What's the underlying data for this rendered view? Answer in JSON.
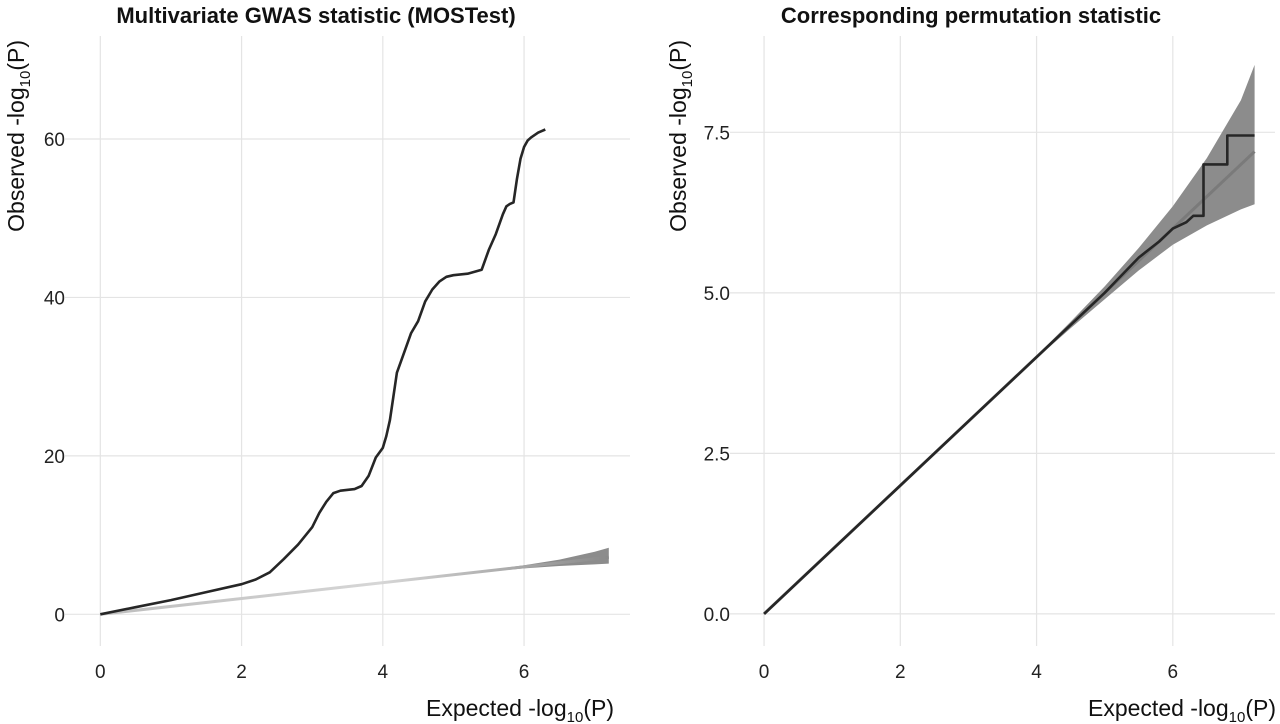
{
  "chart_data": [
    {
      "type": "line",
      "title": "Multivariate GWAS statistic (MOSTest)",
      "xlabel": {
        "prefix": "Expected -log",
        "sub": "10",
        "suffix": "(P)"
      },
      "ylabel": {
        "prefix": "Observed -log",
        "sub": "10",
        "suffix": "(P)"
      },
      "xlim": [
        -0.5,
        7.5
      ],
      "ylim": [
        -4,
        73
      ],
      "x_ticks": [
        0,
        2,
        4,
        6
      ],
      "x_tick_labels": [
        "0",
        "2",
        "4",
        "6"
      ],
      "y_ticks": [
        0,
        20,
        40,
        60
      ],
      "y_tick_labels": [
        "0",
        "20",
        "40",
        "60"
      ],
      "grid": true,
      "band": {
        "x": [
          0,
          1,
          2,
          3,
          4,
          5,
          6,
          6.5,
          7,
          7.2
        ],
        "lower": [
          0,
          1,
          2,
          3,
          4,
          5,
          5.8,
          6.1,
          6.3,
          6.4
        ],
        "upper": [
          0,
          1,
          2,
          3,
          4,
          5,
          6.2,
          6.9,
          7.9,
          8.4
        ]
      },
      "diagonal": {
        "x": [
          0,
          7.2
        ],
        "y": [
          0,
          7.2
        ]
      },
      "series": [
        {
          "x": [
            0,
            0.5,
            1,
            1.5,
            2,
            2.2,
            2.4,
            2.6,
            2.8,
            3.0,
            3.1,
            3.2,
            3.3,
            3.4,
            3.6,
            3.7,
            3.8,
            3.9,
            4.0,
            4.05,
            4.1,
            4.15,
            4.2,
            4.3,
            4.4,
            4.5,
            4.6,
            4.7,
            4.8,
            4.9,
            5.0,
            5.2,
            5.4,
            5.5,
            5.6,
            5.7,
            5.75,
            5.8,
            5.85,
            5.9,
            5.95,
            6.0,
            6.05,
            6.1,
            6.2,
            6.25,
            6.3
          ],
          "y": [
            0,
            0.9,
            1.8,
            2.8,
            3.8,
            4.4,
            5.3,
            7.0,
            8.8,
            11.0,
            12.8,
            14.2,
            15.3,
            15.6,
            15.8,
            16.2,
            17.5,
            19.8,
            21.0,
            22.5,
            24.5,
            27.5,
            30.5,
            33.0,
            35.5,
            37.0,
            39.5,
            41.0,
            42.0,
            42.6,
            42.8,
            43.0,
            43.5,
            46.0,
            48.0,
            50.5,
            51.5,
            51.8,
            52.0,
            55.0,
            57.5,
            59.0,
            59.8,
            60.2,
            60.8,
            61.0,
            61.2
          ]
        }
      ]
    },
    {
      "type": "line",
      "title": "Corresponding permutation statistic",
      "xlabel": {
        "prefix": "Expected -log",
        "sub": "10",
        "suffix": "(P)"
      },
      "ylabel": {
        "prefix": "Observed -log",
        "sub": "10",
        "suffix": "(P)"
      },
      "xlim": [
        -0.5,
        7.5
      ],
      "ylim": [
        -0.5,
        9.0
      ],
      "x_ticks": [
        0,
        2,
        4,
        6
      ],
      "x_tick_labels": [
        "0",
        "2",
        "4",
        "6"
      ],
      "y_ticks": [
        0,
        2.5,
        5.0,
        7.5
      ],
      "y_tick_labels": [
        "0.0",
        "2.5",
        "5.0",
        "7.5"
      ],
      "grid": true,
      "band": {
        "x": [
          0,
          1,
          2,
          3,
          4,
          4.5,
          5,
          5.5,
          6,
          6.5,
          7,
          7.2
        ],
        "lower": [
          0,
          1,
          2,
          3,
          3.98,
          4.45,
          4.9,
          5.35,
          5.75,
          6.05,
          6.3,
          6.38
        ],
        "upper": [
          0,
          1,
          2,
          3,
          4.02,
          4.55,
          5.1,
          5.7,
          6.35,
          7.1,
          8.0,
          8.55
        ]
      },
      "diagonal": {
        "x": [
          0,
          7.2
        ],
        "y": [
          0,
          7.2
        ]
      },
      "series": [
        {
          "x": [
            0,
            1,
            2,
            3,
            4,
            4.5,
            5,
            5.5,
            5.8,
            6.0,
            6.2,
            6.3,
            6.45,
            6.45,
            6.8,
            6.8,
            7.2
          ],
          "y": [
            0,
            1,
            2,
            3,
            4,
            4.5,
            5.0,
            5.55,
            5.8,
            6.0,
            6.1,
            6.2,
            6.2,
            7.0,
            7.0,
            7.45,
            7.45
          ]
        }
      ]
    }
  ]
}
